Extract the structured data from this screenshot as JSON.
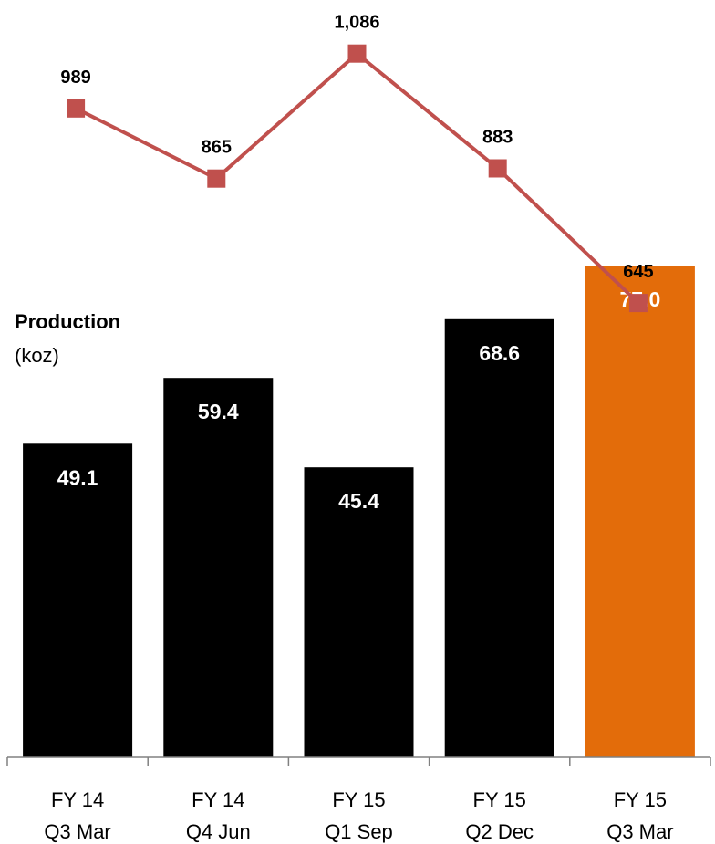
{
  "chart_data": {
    "type": "bar",
    "categories": [
      [
        "FY 14",
        "Q3 Mar"
      ],
      [
        "FY 14",
        "Q4 Jun"
      ],
      [
        "FY 15",
        "Q1 Sep"
      ],
      [
        "FY 15",
        "Q2 Dec"
      ],
      [
        "FY 15",
        "Q3 Mar"
      ]
    ],
    "series": [
      {
        "type": "bar",
        "values": [
          49.1,
          59.4,
          45.4,
          68.6,
          77.0
        ],
        "labels": [
          "49.1",
          "59.4",
          "45.4",
          "68.6",
          "77.0"
        ],
        "colors": [
          "#000000",
          "#000000",
          "#000000",
          "#000000",
          "#E36C0A"
        ]
      },
      {
        "type": "line",
        "values": [
          989,
          865,
          1086,
          883,
          645
        ],
        "labels": [
          "989",
          "865",
          "1,086",
          "883",
          "645"
        ],
        "color": "#C0504D",
        "marker": "square"
      }
    ],
    "ylabel": "Production",
    "ylabel_unit": "(koz)",
    "ylim": [
      0,
      100
    ],
    "line_ylim": [
      0,
      1200
    ],
    "grid": false,
    "legend": "none"
  }
}
